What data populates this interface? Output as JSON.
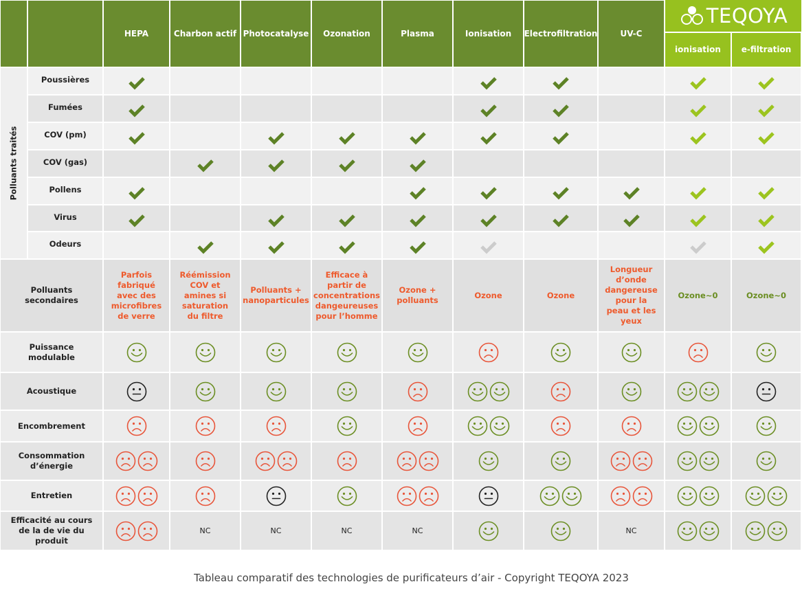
{
  "header": {
    "columns": [
      "HEPA",
      "Charbon actif",
      "Photocatalyse",
      "Ozonation",
      "Plasma",
      "Ionisation",
      "Electrofiltration",
      "UV-C"
    ],
    "brand": "TEQOYA",
    "brand_columns": [
      "ionisation",
      "e-filtration"
    ]
  },
  "pollutants": {
    "group_label": "Polluants traités",
    "rows": [
      "Poussières",
      "Fumées",
      "COV (pm)",
      "COV (gas)",
      "Pollens",
      "Virus",
      "Odeurs"
    ]
  },
  "secondary": {
    "label": "Polluants secondaires",
    "cells": [
      "Parfois fabriqué avec des microfibres de verre",
      "Réémission COV et amines si saturation du filtre",
      "Polluants + nanoparticules",
      "Efficace à partir de concentrations dangeureuses pour l’homme",
      "Ozone + polluants",
      "Ozone",
      "Ozone",
      "Longueur d’onde dangereuse pour la peau et les yeux",
      "Ozone~0",
      "Ozone~0"
    ]
  },
  "criteria": [
    {
      "label": "Puissance modulable"
    },
    {
      "label": "Acoustique"
    },
    {
      "label": "Encombrement"
    },
    {
      "label": "Consommation d’énergie"
    },
    {
      "label": "Entretien"
    },
    {
      "label": "Efficacité au cours de la de vie du produit",
      "notes": [
        null,
        "NC",
        "NC",
        "NC",
        "NC",
        null,
        null,
        "NC",
        null,
        null
      ]
    }
  ],
  "caption": "Tableau comparatif des technologies de purificateurs d’air - Copyright TEQOYA 2023"
}
